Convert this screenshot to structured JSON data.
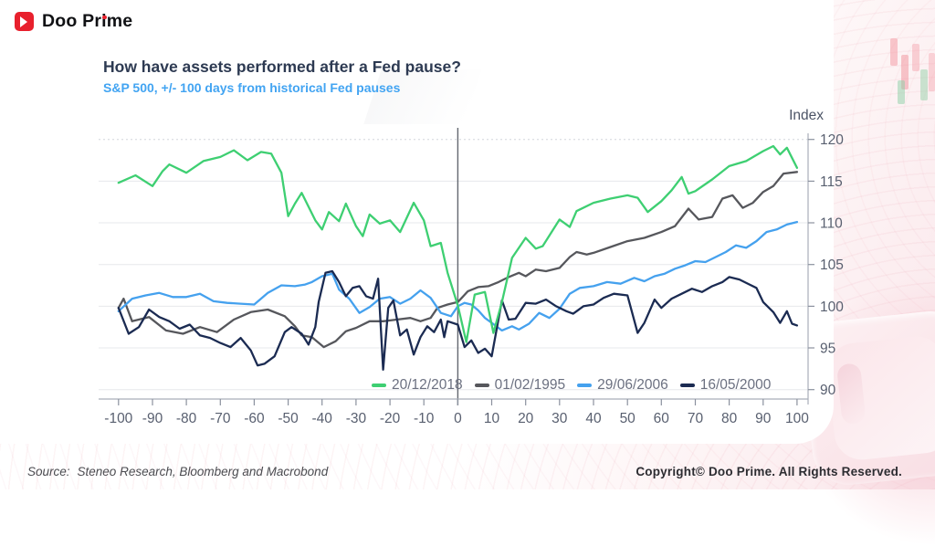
{
  "header": {
    "logo_text": "Doo Prime"
  },
  "chart": {
    "title": "How have assets performed after a Fed pause?",
    "subtitle": "S&P 500, +/- 100 days from historical Fed pauses",
    "y_axis_title": "Index"
  },
  "footer": {
    "source_label": "Source:",
    "source_text": "Steneo Research, Bloomberg and Macrobond",
    "copyright": "Copyright© Doo Prime. All Rights Reserved."
  },
  "colors": {
    "brand_red": "#e8202d",
    "title_text": "#2d3a52",
    "subtitle_text": "#42a4f2",
    "axis_text": "#596070",
    "grid_line": "#e7e8ec"
  },
  "chart_data": {
    "type": "line",
    "title": "How have assets performed after a Fed pause?",
    "subtitle": "S&P 500, +/- 100 days from historical Fed pauses",
    "xlabel": "",
    "ylabel": "Index",
    "xlim": [
      -106,
      103
    ],
    "ylim": [
      89,
      121.5
    ],
    "x_ticks": [
      -100,
      -90,
      -80,
      -70,
      -60,
      -50,
      -40,
      -30,
      -20,
      -10,
      0,
      10,
      20,
      30,
      40,
      50,
      60,
      70,
      80,
      90,
      100
    ],
    "y_ticks": [
      90,
      95,
      100,
      105,
      110,
      115,
      120
    ],
    "grid": true,
    "zero_line_x": 0,
    "legend_position": "inside-bottom",
    "series": [
      {
        "name": "20/12/2018",
        "color": "#3ecf72",
        "x": [
          -100,
          -95,
          -90,
          -87,
          -85,
          -80,
          -75,
          -70,
          -66,
          -62,
          -58,
          -55,
          -52,
          -50,
          -48,
          -46,
          -42,
          -40,
          -38,
          -35,
          -33,
          -30,
          -28,
          -26,
          -23,
          -20,
          -17,
          -13,
          -10,
          -8,
          -5,
          -3,
          0,
          2.5,
          5,
          8,
          10.5,
          13,
          16,
          20,
          23,
          25,
          30,
          33,
          35,
          40,
          45,
          50,
          53,
          56,
          60,
          63,
          66,
          68,
          70,
          75,
          80,
          85,
          90,
          93,
          95,
          97,
          100
        ],
        "y": [
          114.8,
          115.7,
          114.4,
          116.2,
          117.0,
          116.0,
          117.4,
          117.9,
          118.7,
          117.5,
          118.5,
          118.3,
          116.0,
          110.8,
          112.3,
          113.6,
          110.3,
          109.2,
          111.3,
          110.2,
          112.3,
          109.6,
          108.4,
          111.0,
          109.9,
          110.3,
          108.9,
          112.4,
          110.3,
          107.2,
          107.6,
          104.0,
          100.1,
          95.7,
          101.4,
          101.7,
          96.8,
          100.5,
          105.8,
          108.2,
          106.9,
          107.2,
          110.4,
          109.5,
          111.4,
          112.4,
          112.9,
          113.3,
          113.0,
          111.3,
          112.6,
          113.9,
          115.5,
          113.5,
          113.8,
          115.2,
          116.8,
          117.4,
          118.6,
          119.2,
          118.2,
          119.0,
          116.6
        ]
      },
      {
        "name": "01/02/1995",
        "color": "#56575c",
        "x": [
          -100,
          -98.5,
          -96,
          -91,
          -86,
          -81,
          -76,
          -71,
          -66,
          -61,
          -56,
          -51,
          -48,
          -46,
          -43,
          -39.5,
          -36,
          -33,
          -30,
          -26,
          -22,
          -18,
          -14,
          -11,
          -8,
          -6,
          -3,
          0,
          3,
          6,
          9,
          12,
          15,
          18,
          20,
          23,
          26,
          30,
          33,
          35,
          38,
          40,
          45,
          50,
          55,
          60,
          64,
          68,
          71,
          75,
          78,
          81,
          84,
          87,
          90,
          93,
          96,
          100
        ],
        "y": [
          99.8,
          100.9,
          98.2,
          98.7,
          97.1,
          96.7,
          97.5,
          96.9,
          98.4,
          99.3,
          99.6,
          98.8,
          97.6,
          96.5,
          96.3,
          95.1,
          95.8,
          97.0,
          97.4,
          98.2,
          98.2,
          98.4,
          98.6,
          98.2,
          98.6,
          99.8,
          100.2,
          100.5,
          101.8,
          102.3,
          102.4,
          102.9,
          103.5,
          104.0,
          103.6,
          104.4,
          104.2,
          104.6,
          105.9,
          106.5,
          106.2,
          106.4,
          107.1,
          107.8,
          108.2,
          108.9,
          109.6,
          111.7,
          110.4,
          110.7,
          112.9,
          113.3,
          111.8,
          112.4,
          113.7,
          114.4,
          115.9,
          116.1
        ]
      },
      {
        "name": "29/06/2006",
        "color": "#45a1ee",
        "x": [
          -100,
          -96,
          -92,
          -88,
          -84,
          -80,
          -76,
          -72,
          -68,
          -64,
          -60,
          -56,
          -52,
          -48,
          -45,
          -43,
          -40,
          -37,
          -35,
          -32,
          -29,
          -26,
          -23,
          -20,
          -17,
          -14,
          -11,
          -8,
          -5,
          -2,
          0,
          2,
          4,
          6,
          8,
          10,
          13,
          16,
          18,
          21,
          24,
          27,
          30,
          33,
          36,
          40,
          44,
          48,
          52,
          55,
          58,
          61,
          64,
          67,
          70,
          73,
          76,
          79,
          82,
          85,
          88,
          91,
          94,
          97,
          100
        ],
        "y": [
          99.4,
          100.9,
          101.3,
          101.6,
          101.1,
          101.1,
          101.5,
          100.6,
          100.4,
          100.3,
          100.2,
          101.6,
          102.5,
          102.4,
          102.6,
          102.9,
          103.6,
          103.9,
          102.0,
          100.9,
          99.2,
          99.9,
          100.9,
          101.1,
          100.3,
          100.9,
          101.9,
          101.0,
          99.2,
          98.8,
          100.0,
          100.4,
          100.2,
          99.5,
          98.6,
          98.0,
          97.1,
          97.6,
          97.2,
          97.9,
          99.2,
          98.6,
          99.7,
          101.5,
          102.2,
          102.4,
          102.9,
          102.7,
          103.4,
          103.0,
          103.6,
          103.9,
          104.5,
          104.9,
          105.4,
          105.3,
          105.9,
          106.5,
          107.3,
          107.0,
          107.8,
          108.9,
          109.2,
          109.8,
          110.1
        ]
      },
      {
        "name": "16/05/2000",
        "color": "#1b2b52",
        "x": [
          -100,
          -97,
          -94,
          -91,
          -88,
          -85,
          -82,
          -79,
          -76,
          -73,
          -70,
          -67,
          -64,
          -61,
          -59,
          -57,
          -54,
          -51,
          -49,
          -46,
          -44,
          -42,
          -41,
          -39,
          -37,
          -35,
          -33,
          -31,
          -29,
          -27,
          -25,
          -23.5,
          -22,
          -20.5,
          -19,
          -17,
          -15,
          -13,
          -11,
          -9,
          -7,
          -5,
          -4,
          -3,
          0,
          2,
          4,
          6,
          8,
          10,
          13,
          15,
          17,
          20,
          23,
          26,
          29,
          32,
          34,
          37,
          40,
          43,
          46,
          50,
          53,
          55,
          58,
          60,
          63,
          66,
          69,
          72,
          75,
          78,
          80,
          83,
          86,
          88,
          90,
          93,
          95,
          97,
          98.5,
          100
        ],
        "y": [
          99.8,
          96.7,
          97.5,
          99.6,
          98.7,
          98.2,
          97.3,
          97.8,
          96.5,
          96.2,
          95.6,
          95.1,
          96.2,
          94.7,
          92.9,
          93.1,
          94.0,
          96.9,
          97.5,
          96.7,
          95.4,
          97.5,
          100.5,
          104.0,
          104.2,
          102.9,
          101.2,
          102.2,
          102.4,
          101.2,
          100.9,
          103.3,
          92.4,
          99.8,
          100.7,
          96.5,
          97.2,
          94.2,
          96.3,
          97.6,
          96.9,
          98.4,
          96.3,
          98.2,
          97.8,
          95.1,
          95.9,
          94.4,
          94.9,
          94.0,
          100.7,
          98.4,
          98.5,
          100.4,
          100.3,
          100.8,
          100.0,
          99.4,
          99.1,
          100.0,
          100.2,
          101.0,
          101.5,
          101.3,
          96.8,
          98.0,
          100.8,
          99.8,
          100.9,
          101.5,
          102.1,
          101.7,
          102.4,
          102.9,
          103.5,
          103.2,
          102.6,
          102.2,
          100.5,
          99.3,
          98.0,
          99.4,
          97.9,
          97.7
        ]
      }
    ]
  }
}
